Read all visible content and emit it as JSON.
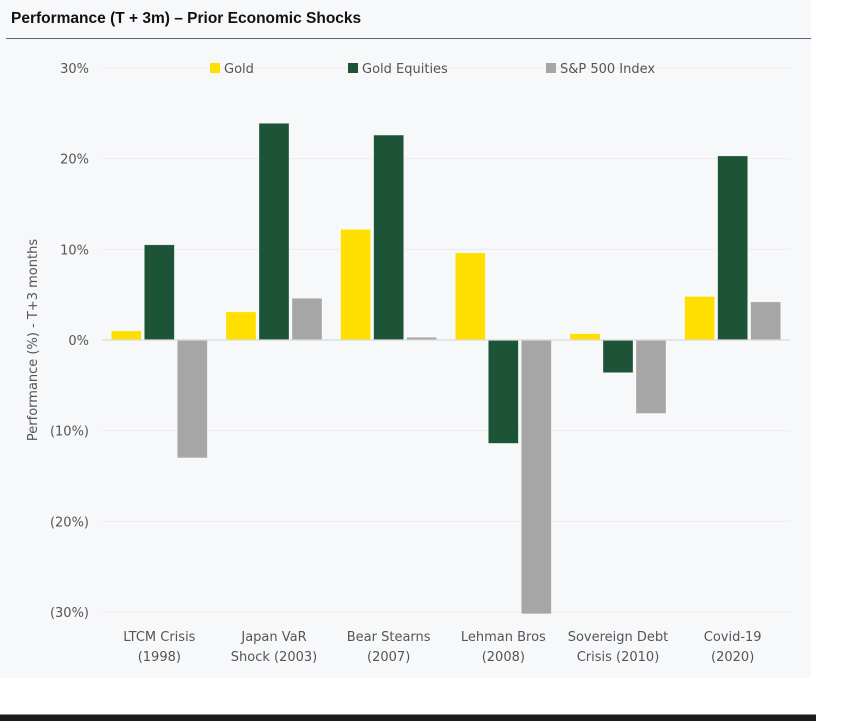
{
  "chart_data": {
    "type": "bar",
    "title": "Performance (T + 3m) – Prior Economic Shocks",
    "xlabel": "",
    "ylabel": "Performance (%)  - T+3 months",
    "ylim": [
      -30,
      30
    ],
    "yticks": [
      30,
      20,
      10,
      0,
      -10,
      -20,
      -30
    ],
    "ytick_labels": [
      "30%",
      "20%",
      "10%",
      "0%",
      "(10%)",
      "(20%)",
      "(30%)"
    ],
    "grid": true,
    "legend_position": "top",
    "categories": [
      [
        "LTCM Crisis",
        "(1998)"
      ],
      [
        "Japan VaR",
        "Shock (2003)"
      ],
      [
        "Bear Stearns",
        "(2007)"
      ],
      [
        "Lehman Bros",
        "(2008)"
      ],
      [
        "Sovereign Debt",
        "Crisis (2010)"
      ],
      [
        "Covid-19",
        "(2020)"
      ]
    ],
    "series": [
      {
        "name": "Gold",
        "color": "#ffdf00",
        "values": [
          1.0,
          3.1,
          12.2,
          9.6,
          0.7,
          4.8
        ]
      },
      {
        "name": "Gold Equities",
        "color": "#1d5437",
        "values": [
          10.5,
          23.9,
          22.6,
          -11.4,
          -3.6,
          20.3
        ]
      },
      {
        "name": "S&P 500 Index",
        "color": "#a6a6a6",
        "values": [
          -13.0,
          4.6,
          0.3,
          -30.2,
          -8.1,
          4.2
        ]
      }
    ]
  }
}
